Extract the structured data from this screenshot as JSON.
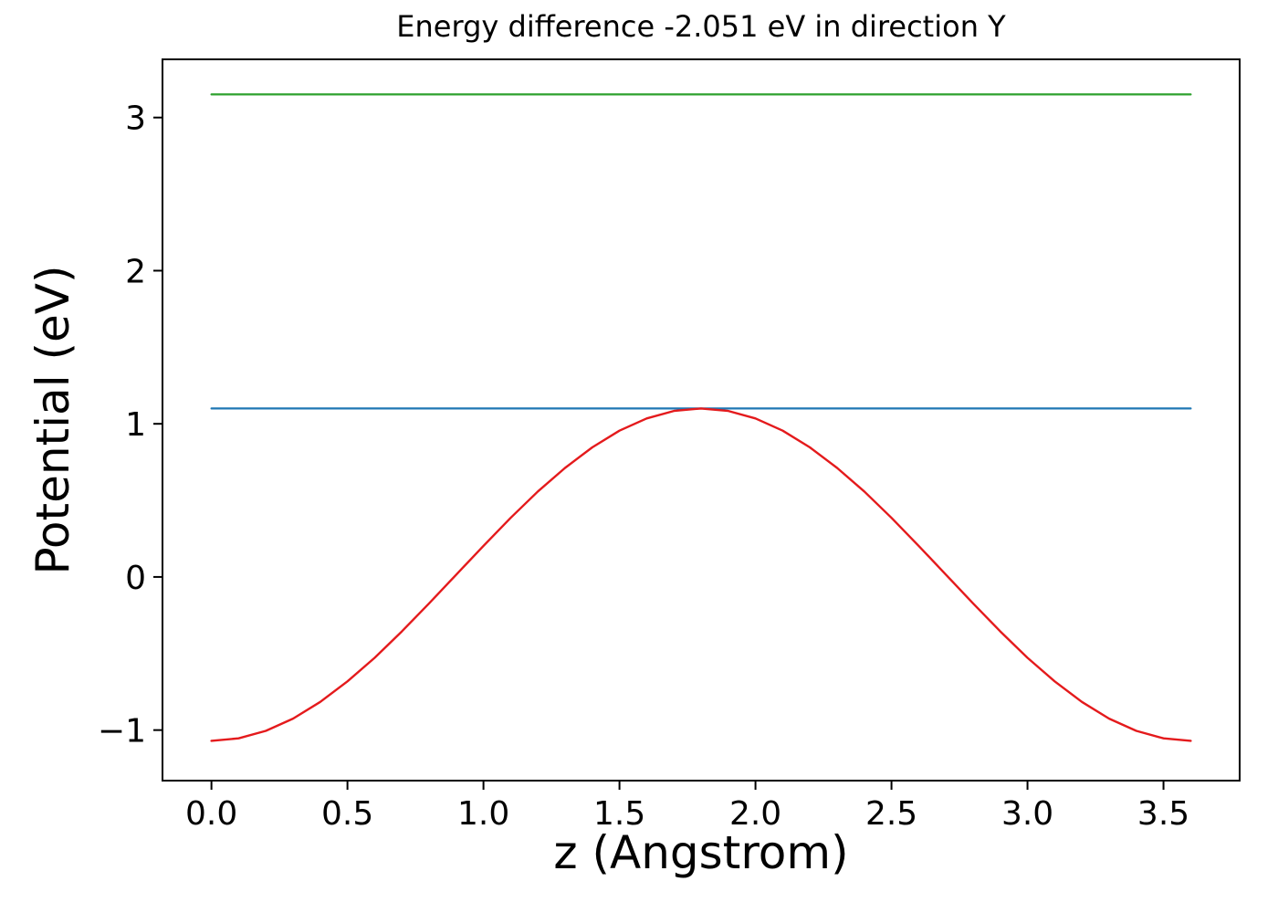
{
  "chart_data": {
    "type": "line",
    "title": "Energy difference -2.051 eV in direction Y",
    "xlabel": "z (Angstrom)",
    "ylabel": "Potential (eV)",
    "xlim": [
      -0.18,
      3.78
    ],
    "ylim": [
      -1.33,
      3.38
    ],
    "xticks": [
      0.0,
      0.5,
      1.0,
      1.5,
      2.0,
      2.5,
      3.0,
      3.5
    ],
    "xtick_labels": [
      "0.0",
      "0.5",
      "1.0",
      "1.5",
      "2.0",
      "2.5",
      "3.0",
      "3.5"
    ],
    "yticks": [
      -1,
      0,
      1,
      2,
      3
    ],
    "ytick_labels": [
      "−1",
      "0",
      "1",
      "2",
      "3"
    ],
    "grid": false,
    "legend": null,
    "background": "#ffffff",
    "spine_color": "#000000",
    "series": [
      {
        "name": "upper-level-green",
        "color": "#2ca02c",
        "width": 2.2,
        "x": [
          0.0,
          3.6
        ],
        "y": [
          3.151,
          3.151
        ]
      },
      {
        "name": "lower-level-blue",
        "color": "#1f77b4",
        "width": 2.2,
        "x": [
          0.0,
          3.6
        ],
        "y": [
          1.1,
          1.1
        ]
      },
      {
        "name": "planar-potential-red",
        "color": "#e41a1c",
        "width": 2.4,
        "x": [
          0.0,
          0.1,
          0.2,
          0.3,
          0.4,
          0.5,
          0.6,
          0.7,
          0.8,
          0.9,
          1.0,
          1.1,
          1.2,
          1.3,
          1.4,
          1.5,
          1.6,
          1.7,
          1.8,
          1.9,
          2.0,
          2.1,
          2.2,
          2.3,
          2.4,
          2.5,
          2.6,
          2.7,
          2.8,
          2.9,
          3.0,
          3.1,
          3.2,
          3.3,
          3.4,
          3.5,
          3.6
        ],
        "y": [
          -1.07,
          -1.054,
          -1.005,
          -0.925,
          -0.816,
          -0.682,
          -0.528,
          -0.356,
          -0.173,
          0.015,
          0.203,
          0.386,
          0.558,
          0.712,
          0.846,
          0.955,
          1.035,
          1.084,
          1.1,
          1.084,
          1.035,
          0.955,
          0.846,
          0.712,
          0.558,
          0.386,
          0.203,
          0.015,
          -0.173,
          -0.356,
          -0.528,
          -0.682,
          -0.816,
          -0.925,
          -1.005,
          -1.054,
          -1.07
        ]
      }
    ]
  }
}
